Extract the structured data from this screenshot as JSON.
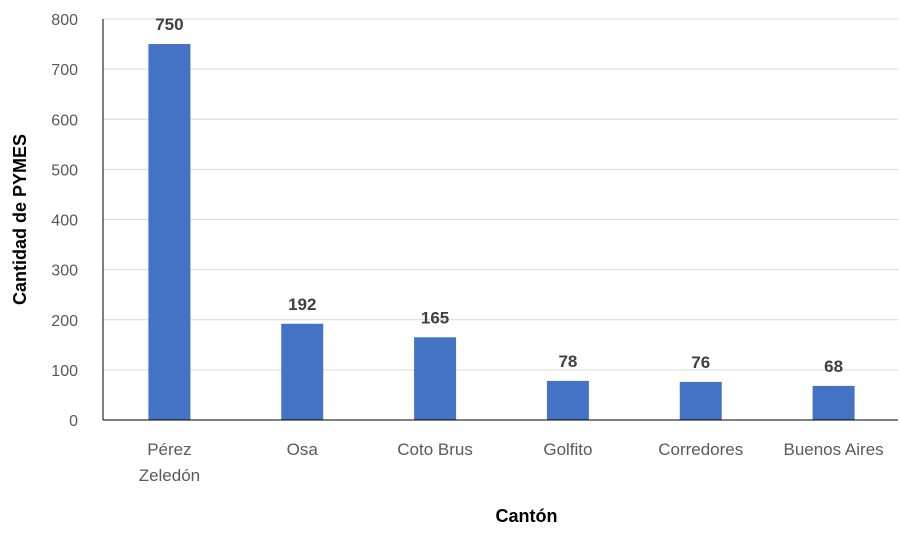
{
  "chart_data": {
    "type": "bar",
    "categories": [
      [
        "Pérez",
        "Zeledón"
      ],
      [
        "Osa"
      ],
      [
        "Coto Brus"
      ],
      [
        "Golfito"
      ],
      [
        "Corredores"
      ],
      [
        "Buenos Aires"
      ]
    ],
    "values": [
      750,
      192,
      165,
      78,
      76,
      68
    ],
    "data_labels": [
      "750",
      "192",
      "165",
      "78",
      "76",
      "68"
    ],
    "title": "",
    "xlabel": "Cantón",
    "ylabel": "Cantidad de PYMES",
    "ylim": [
      0,
      800
    ],
    "yticks": [
      0,
      100,
      200,
      300,
      400,
      500,
      600,
      700,
      800
    ],
    "grid": true,
    "legend": "none",
    "bar_color": "#4472C4"
  }
}
